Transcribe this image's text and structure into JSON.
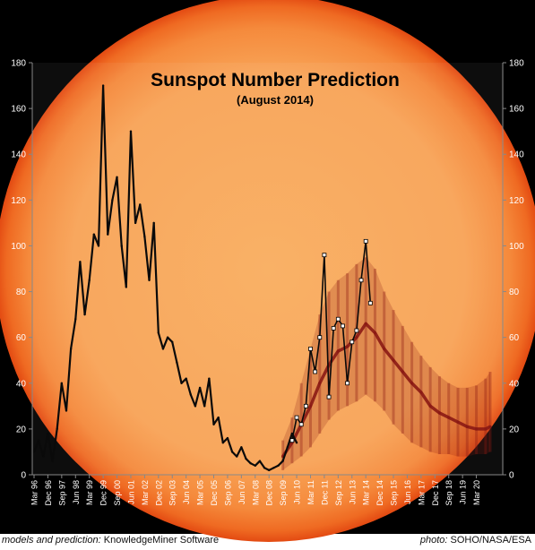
{
  "chart_data": {
    "type": "line",
    "title": "Sunspot Number Prediction",
    "subtitle": "(August 2014)",
    "ylim": [
      0,
      180
    ],
    "y_ticks": [
      0,
      20,
      40,
      60,
      80,
      100,
      120,
      140,
      160,
      180
    ],
    "x_tick_labels": [
      "Mar 96",
      "Dec 96",
      "Sep 97",
      "Jun 98",
      "Mar 99",
      "Dec 99",
      "Sep 00",
      "Jun 01",
      "Mar 02",
      "Dec 02",
      "Sep 03",
      "Jun 04",
      "Mar 05",
      "Dec 05",
      "Sep 06",
      "Jun 07",
      "Mar 08",
      "Dec 08",
      "Sep 09",
      "Jun 10",
      "Mar 11",
      "Dec 11",
      "Sep 12",
      "Jun 13",
      "Mar 14",
      "Dec 14",
      "Sep 15",
      "Jun 16",
      "Mar 17",
      "Dec 17",
      "Sep 18",
      "Jun 19",
      "Mar 20"
    ],
    "x_range": [
      "Mar 96",
      "Dec 20"
    ],
    "grid": false,
    "legend": "none",
    "series": [
      {
        "role": "observed",
        "color": "#0a0a0a",
        "x": [
          "Mar 96",
          "Jun 96",
          "Sep 96",
          "Dec 96",
          "Mar 97",
          "Jun 97",
          "Sep 97",
          "Dec 97",
          "Mar 98",
          "Jun 98",
          "Sep 98",
          "Dec 98",
          "Mar 99",
          "Jun 99",
          "Sep 99",
          "Dec 99",
          "Mar 00",
          "Jun 00",
          "Sep 00",
          "Dec 00",
          "Mar 01",
          "Jun 01",
          "Sep 01",
          "Dec 01",
          "Mar 02",
          "Jun 02",
          "Sep 02",
          "Dec 02",
          "Mar 03",
          "Jun 03",
          "Sep 03",
          "Dec 03",
          "Mar 04",
          "Jun 04",
          "Sep 04",
          "Dec 04",
          "Mar 05",
          "Jun 05",
          "Sep 05",
          "Dec 05",
          "Mar 06",
          "Jun 06",
          "Sep 06",
          "Dec 06",
          "Mar 07",
          "Jun 07",
          "Sep 07",
          "Dec 07",
          "Mar 08",
          "Jun 08",
          "Sep 08",
          "Dec 08",
          "Mar 09",
          "Jun 09",
          "Sep 09",
          "Dec 09",
          "Mar 10",
          "Jun 10"
        ],
        "values": [
          10,
          15,
          8,
          18,
          6,
          20,
          40,
          28,
          55,
          68,
          93,
          70,
          85,
          105,
          100,
          170,
          105,
          120,
          130,
          100,
          82,
          150,
          110,
          118,
          104,
          85,
          110,
          62,
          55,
          60,
          58,
          49,
          40,
          42,
          35,
          30,
          38,
          30,
          42,
          22,
          25,
          14,
          16,
          10,
          8,
          12,
          7,
          5,
          4,
          6,
          3,
          2,
          3,
          4,
          6,
          12,
          18,
          14
        ]
      },
      {
        "role": "recent observed",
        "color": "#0a0a0a",
        "marker": "white square",
        "x": [
          "Mar 10",
          "Jun 10",
          "Sep 10",
          "Dec 10",
          "Mar 11",
          "Jun 11",
          "Sep 11",
          "Dec 11",
          "Mar 12",
          "Jun 12",
          "Sep 12",
          "Dec 12",
          "Mar 13",
          "Jun 13",
          "Sep 13",
          "Dec 13",
          "Mar 14",
          "Jun 14"
        ],
        "values": [
          15,
          25,
          22,
          30,
          55,
          45,
          60,
          96,
          34,
          64,
          68,
          65,
          40,
          58,
          63,
          85,
          102,
          75
        ]
      },
      {
        "role": "prediction",
        "color": "#8b1a14",
        "x": [
          "Sep 09",
          "Mar 10",
          "Sep 10",
          "Mar 11",
          "Sep 11",
          "Mar 12",
          "Sep 12",
          "Mar 13",
          "Sep 13",
          "Mar 14",
          "Sep 14",
          "Mar 15",
          "Sep 15",
          "Mar 16",
          "Sep 16",
          "Mar 17",
          "Sep 17",
          "Mar 18",
          "Sep 18",
          "Mar 19",
          "Sep 19",
          "Mar 20",
          "Sep 20",
          "Dec 20"
        ],
        "values": [
          8,
          14,
          22,
          30,
          40,
          48,
          54,
          56,
          60,
          66,
          62,
          55,
          50,
          45,
          40,
          36,
          30,
          27,
          25,
          23,
          21,
          20,
          20,
          21
        ],
        "upper": [
          15,
          25,
          40,
          55,
          70,
          80,
          85,
          88,
          92,
          95,
          90,
          80,
          72,
          65,
          58,
          52,
          47,
          43,
          40,
          38,
          38,
          39,
          42,
          45
        ],
        "lower": [
          2,
          5,
          8,
          12,
          18,
          24,
          28,
          30,
          32,
          35,
          32,
          28,
          22,
          18,
          14,
          12,
          10,
          9,
          9,
          8,
          8,
          9,
          9,
          10
        ]
      }
    ]
  },
  "credits": {
    "left_prefix": "models and prediction:",
    "left_name": "KnowledgeMiner Software",
    "right_prefix": "photo:",
    "right_name": "SOHO/NASA/ESA"
  }
}
